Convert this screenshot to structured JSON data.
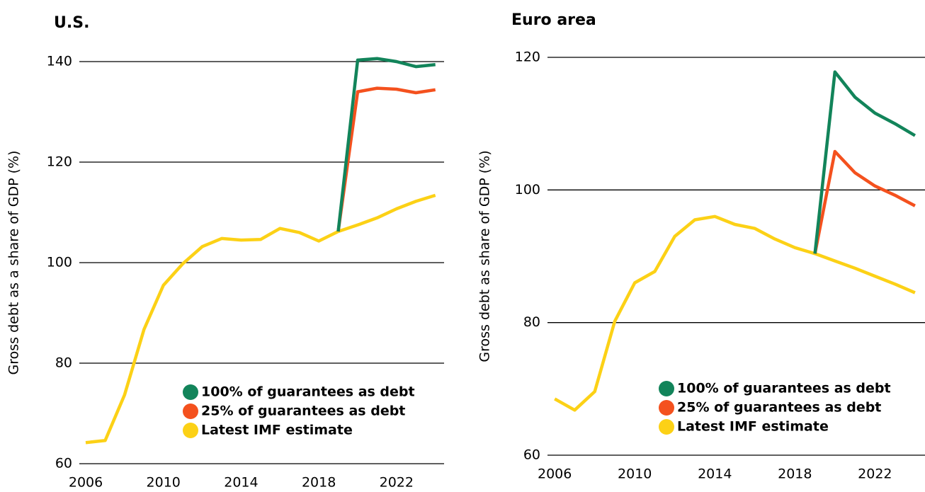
{
  "chart_data": [
    {
      "type": "line",
      "title": "U.S.",
      "y_label": "Gross debt as a share of GDP (%)",
      "x": [
        2006,
        2007,
        2008,
        2009,
        2010,
        2011,
        2012,
        2013,
        2014,
        2015,
        2016,
        2017,
        2018,
        2019,
        2020,
        2021,
        2022,
        2023,
        2024
      ],
      "xlim": [
        2005.67,
        2024.45
      ],
      "xticks": [
        2006,
        2010,
        2014,
        2018,
        2022
      ],
      "ylim": [
        60,
        140
      ],
      "yticks": [
        60,
        80,
        100,
        120,
        140
      ],
      "grid": true,
      "series": [
        {
          "name": "Latest IMF estimate",
          "color": "#fcd116",
          "values": [
            64.2,
            64.6,
            73.7,
            86.7,
            95.5,
            99.8,
            103.2,
            104.8,
            104.5,
            104.6,
            106.8,
            106.0,
            104.3,
            106.2,
            107.5,
            108.9,
            110.7,
            112.2,
            113.4
          ]
        },
        {
          "name": "25% of guarantees as debt",
          "color": "#f4511e",
          "values": [
            null,
            null,
            null,
            null,
            null,
            null,
            null,
            null,
            null,
            null,
            null,
            null,
            null,
            106.2,
            134.0,
            134.7,
            134.5,
            133.8,
            134.4
          ]
        },
        {
          "name": "100% of guarantees as debt",
          "color": "#12845a",
          "values": [
            null,
            null,
            null,
            null,
            null,
            null,
            null,
            null,
            null,
            null,
            null,
            null,
            null,
            106.2,
            140.3,
            140.6,
            140.0,
            139.0,
            139.4
          ]
        }
      ]
    },
    {
      "type": "line",
      "title": "Euro area",
      "y_label": "Gross debt as share of GDP (%)",
      "x": [
        2006,
        2007,
        2008,
        2009,
        2010,
        2011,
        2012,
        2013,
        2014,
        2015,
        2016,
        2017,
        2018,
        2019,
        2020,
        2021,
        2022,
        2023,
        2024
      ],
      "xlim": [
        2005.64,
        2024.5
      ],
      "xticks": [
        2006,
        2010,
        2014,
        2018,
        2022
      ],
      "ylim": [
        60,
        120
      ],
      "yticks": [
        60,
        80,
        100,
        120
      ],
      "grid": true,
      "series": [
        {
          "name": "Latest IMF estimate",
          "color": "#fcd116",
          "values": [
            68.5,
            66.8,
            69.6,
            80.2,
            86.0,
            87.7,
            93.0,
            95.5,
            96.0,
            94.8,
            94.2,
            92.6,
            91.3,
            90.4,
            89.3,
            88.2,
            87.0,
            85.8,
            84.5
          ]
        },
        {
          "name": "25% of guarantees as debt",
          "color": "#f4511e",
          "values": [
            null,
            null,
            null,
            null,
            null,
            null,
            null,
            null,
            null,
            null,
            null,
            null,
            null,
            90.4,
            105.8,
            102.6,
            100.6,
            99.2,
            97.6
          ]
        },
        {
          "name": "100% of guarantees as debt",
          "color": "#12845a",
          "values": [
            null,
            null,
            null,
            null,
            null,
            null,
            null,
            null,
            null,
            null,
            null,
            null,
            null,
            90.4,
            117.8,
            114.0,
            111.6,
            110.0,
            108.2
          ]
        }
      ]
    }
  ]
}
